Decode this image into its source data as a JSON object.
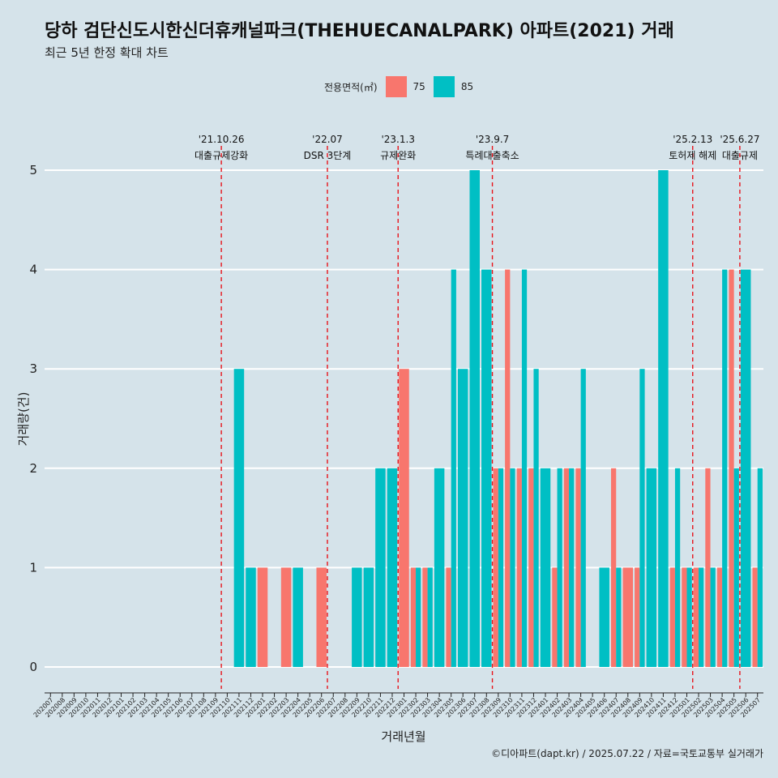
{
  "title": "당하 검단신도시한신더휴캐널파크(THEHUECANALPARK) 아파트(2021) 거래",
  "subtitle": "최근 5년 한정 확대 차트",
  "caption": "©디아파트(dapt.kr) / 2025.07.22 / 자료=국토교통부 실거래가",
  "legend": {
    "title": "전용면적(㎡)",
    "items": [
      {
        "label": "75",
        "color": "#f8766d"
      },
      {
        "label": "85",
        "color": "#00bfc4"
      }
    ]
  },
  "chart_data": {
    "type": "bar",
    "xlabel": "거래년월",
    "ylabel": "거래량(건)",
    "ylim": [
      0,
      5
    ],
    "yticks": [
      0,
      1,
      2,
      3,
      4,
      5
    ],
    "categories": [
      "202007",
      "202008",
      "202009",
      "202010",
      "202011",
      "202012",
      "202101",
      "202102",
      "202103",
      "202104",
      "202105",
      "202106",
      "202107",
      "202108",
      "202109",
      "202110",
      "202111",
      "202112",
      "202201",
      "202202",
      "202203",
      "202204",
      "202205",
      "202206",
      "202207",
      "202208",
      "202209",
      "202210",
      "202211",
      "202212",
      "202301",
      "202302",
      "202303",
      "202304",
      "202305",
      "202306",
      "202307",
      "202308",
      "202309",
      "202310",
      "202311",
      "202312",
      "202401",
      "202402",
      "202403",
      "202404",
      "202405",
      "202406",
      "202407",
      "202408",
      "202409",
      "202410",
      "202411",
      "202412",
      "202501",
      "202502",
      "202503",
      "202504",
      "202505",
      "202506",
      "202507"
    ],
    "series": [
      {
        "name": "75",
        "color": "#f8766d",
        "values": [
          0,
          0,
          0,
          0,
          0,
          0,
          0,
          0,
          0,
          0,
          0,
          0,
          0,
          0,
          0,
          0,
          0,
          0,
          1,
          0,
          1,
          0,
          0,
          1,
          0,
          0,
          0,
          0,
          0,
          0,
          3,
          1,
          1,
          0,
          1,
          0,
          0,
          0,
          2,
          4,
          2,
          2,
          0,
          1,
          2,
          2,
          0,
          0,
          2,
          1,
          1,
          0,
          0,
          1,
          1,
          1,
          2,
          1,
          4,
          0,
          1
        ]
      },
      {
        "name": "85",
        "color": "#00bfc4",
        "values": [
          0,
          0,
          0,
          0,
          0,
          0,
          0,
          0,
          0,
          0,
          0,
          0,
          0,
          0,
          0,
          0,
          3,
          1,
          0,
          0,
          0,
          1,
          0,
          0,
          0,
          0,
          1,
          1,
          2,
          2,
          0,
          1,
          1,
          2,
          4,
          3,
          5,
          4,
          2,
          2,
          4,
          3,
          2,
          2,
          2,
          3,
          0,
          1,
          1,
          0,
          3,
          2,
          5,
          2,
          1,
          1,
          1,
          4,
          2,
          4,
          2
        ]
      }
    ],
    "events": [
      {
        "date": "'21.10.26",
        "label": "대출규제강화",
        "category": "202110"
      },
      {
        "date": "'22.07",
        "label": "DSR 3단계",
        "category": "202207"
      },
      {
        "date": "'23.1.3",
        "label": "규제완화",
        "category": "202301"
      },
      {
        "date": "'23.9.7",
        "label": "특례대출축소",
        "category": "202309"
      },
      {
        "date": "'25.2.13",
        "label": "토허제 해제",
        "category": "202502"
      },
      {
        "date": "'25.6.27",
        "label": "대출규제",
        "category": "202506"
      }
    ]
  }
}
